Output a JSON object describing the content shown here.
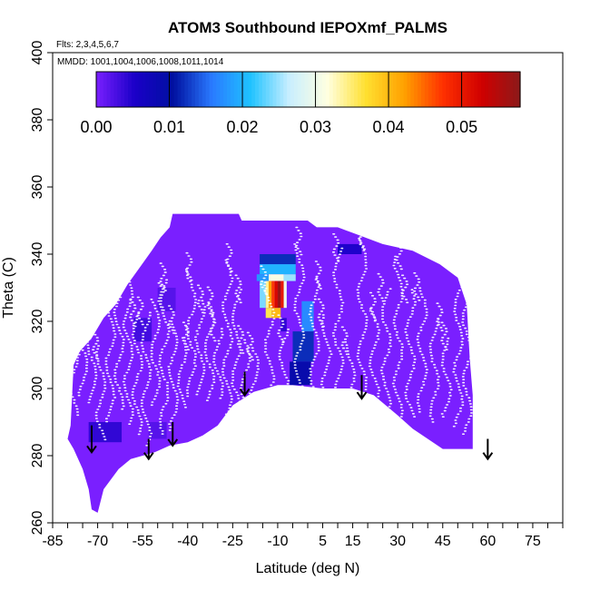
{
  "chart_data": {
    "type": "heatmap",
    "title": "ATOM3 Southbound IEPOXmf_PALMS",
    "flights_note": "Flts: 2,3,4,5,6,7",
    "mmdd_note": "MMDD: 1001,1004,1006,1008,1011,1014",
    "xlabel": "Latitude (deg N)",
    "ylabel": "Theta (C)",
    "xlim": [
      -85,
      85
    ],
    "ylim": [
      260,
      400
    ],
    "x_ticks": [
      "-85",
      "-70",
      "-55",
      "-40",
      "-25",
      "-10",
      "5",
      "15",
      "30",
      "45",
      "60",
      "75"
    ],
    "y_ticks": [
      "260",
      "280",
      "300",
      "320",
      "340",
      "360",
      "380",
      "400"
    ],
    "colorbar": {
      "ticks": [
        "0.00",
        "0.01",
        "0.02",
        "0.03",
        "0.04",
        "0.05"
      ],
      "range": [
        0,
        0.058
      ],
      "colors": [
        "#7a1fff",
        "#1a00c8",
        "#0010a0",
        "#2a7aff",
        "#1fc2ff",
        "#c8eeff",
        "#ffffe0",
        "#ffe030",
        "#ffa000",
        "#ff3000",
        "#d00000",
        "#8c1a1a"
      ]
    },
    "background_value": 0.0,
    "envelope": [
      [
        -79,
        289
      ],
      [
        -78,
        307
      ],
      [
        -76,
        311
      ],
      [
        -72,
        315
      ],
      [
        -68,
        321
      ],
      [
        -64,
        325
      ],
      [
        -60,
        331
      ],
      [
        -56,
        336
      ],
      [
        -52,
        341
      ],
      [
        -49,
        345
      ],
      [
        -46,
        348
      ],
      [
        -45,
        352
      ],
      [
        -43,
        352
      ],
      [
        -26,
        352
      ],
      [
        -23,
        352
      ],
      [
        -22,
        350
      ],
      [
        -18,
        350
      ],
      [
        0,
        350
      ],
      [
        3,
        348
      ],
      [
        10,
        348
      ],
      [
        16,
        346
      ],
      [
        25,
        343
      ],
      [
        35,
        341
      ],
      [
        44,
        337
      ],
      [
        50,
        333
      ],
      [
        53,
        325
      ],
      [
        54,
        309
      ],
      [
        55,
        298
      ],
      [
        55,
        282
      ],
      [
        45,
        282
      ],
      [
        35,
        288
      ],
      [
        30,
        292
      ],
      [
        22,
        298
      ],
      [
        15,
        300
      ],
      [
        5,
        300
      ],
      [
        -5,
        301
      ],
      [
        -10,
        301
      ],
      [
        -18,
        299
      ],
      [
        -25,
        295
      ],
      [
        -30,
        289
      ],
      [
        -35,
        286
      ],
      [
        -40,
        284
      ],
      [
        -46,
        283
      ],
      [
        -51,
        281
      ],
      [
        -55,
        280
      ],
      [
        -59,
        279
      ],
      [
        -63,
        276
      ],
      [
        -68,
        270
      ],
      [
        -70,
        263
      ],
      [
        -72,
        264
      ],
      [
        -73,
        270
      ],
      [
        -75,
        276
      ],
      [
        -78,
        282
      ],
      [
        -80,
        285
      ]
    ],
    "cells": [
      {
        "lat": [
          -73,
          -62
        ],
        "theta": [
          284,
          290
        ],
        "value": 0.004
      },
      {
        "lat": [
          -58,
          -52
        ],
        "theta": [
          314,
          321
        ],
        "value": 0.003
      },
      {
        "lat": [
          -50,
          -44
        ],
        "theta": [
          323,
          330
        ],
        "value": 0.002
      },
      {
        "lat": [
          -53,
          -47
        ],
        "theta": [
          285,
          290
        ],
        "value": 0.002
      },
      {
        "lat": [
          -16,
          -4
        ],
        "theta": [
          337,
          340
        ],
        "value": 0.012
      },
      {
        "lat": [
          -16,
          -4
        ],
        "theta": [
          334,
          337
        ],
        "value": 0.02
      },
      {
        "lat": [
          -17,
          -13
        ],
        "theta": [
          332,
          334
        ],
        "value": 0.018
      },
      {
        "lat": [
          -13,
          -8
        ],
        "theta": [
          332,
          334
        ],
        "value": 0.031
      },
      {
        "lat": [
          -8,
          -4
        ],
        "theta": [
          332,
          334
        ],
        "value": 0.025
      },
      {
        "lat": [
          -16,
          -14
        ],
        "theta": [
          324,
          332
        ],
        "value": 0.024
      },
      {
        "lat": [
          -14,
          -13
        ],
        "theta": [
          324,
          332
        ],
        "value": 0.034
      },
      {
        "lat": [
          -13,
          -12
        ],
        "theta": [
          324,
          332
        ],
        "value": 0.042
      },
      {
        "lat": [
          -12,
          -11
        ],
        "theta": [
          324,
          332
        ],
        "value": 0.047
      },
      {
        "lat": [
          -11,
          -10
        ],
        "theta": [
          324,
          332
        ],
        "value": 0.052
      },
      {
        "lat": [
          -10,
          -9
        ],
        "theta": [
          324,
          332
        ],
        "value": 0.057
      },
      {
        "lat": [
          -9,
          -8
        ],
        "theta": [
          324,
          332
        ],
        "value": 0.05
      },
      {
        "lat": [
          -8,
          -7
        ],
        "theta": [
          324,
          332
        ],
        "value": 0.03
      },
      {
        "lat": [
          -14,
          -12
        ],
        "theta": [
          321,
          324
        ],
        "value": 0.036
      },
      {
        "lat": [
          -12,
          -9
        ],
        "theta": [
          321,
          324
        ],
        "value": 0.04
      },
      {
        "lat": [
          -2,
          2
        ],
        "theta": [
          317,
          326
        ],
        "value": 0.017
      },
      {
        "lat": [
          -5,
          2
        ],
        "theta": [
          308,
          317
        ],
        "value": 0.012
      },
      {
        "lat": [
          -6,
          1
        ],
        "theta": [
          301,
          308
        ],
        "value": 0.009
      },
      {
        "lat": [
          10,
          18
        ],
        "theta": [
          340,
          343
        ],
        "value": 0.005
      },
      {
        "lat": [
          -9,
          -7
        ],
        "theta": [
          317,
          321
        ],
        "value": 0.004
      }
    ],
    "arrows": [
      {
        "lat": -72,
        "theta_top": 289,
        "theta_bottom": 281
      },
      {
        "lat": -53,
        "theta_top": 285,
        "theta_bottom": 279
      },
      {
        "lat": -45,
        "theta_top": 290,
        "theta_bottom": 283
      },
      {
        "lat": -21,
        "theta_top": 305,
        "theta_bottom": 298
      },
      {
        "lat": 18,
        "theta_top": 304,
        "theta_bottom": 297
      },
      {
        "lat": 60,
        "theta_top": 285,
        "theta_bottom": 279
      }
    ]
  }
}
